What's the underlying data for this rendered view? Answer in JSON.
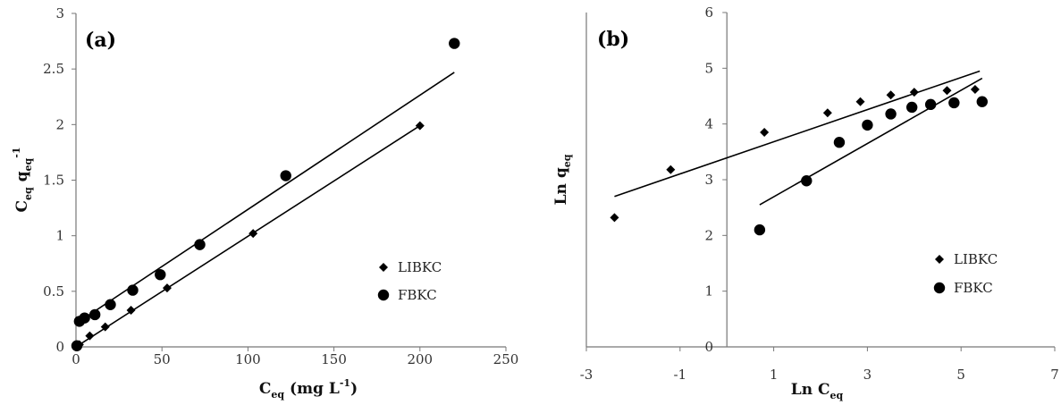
{
  "chart_data": [
    {
      "type": "scatter",
      "panel_label": "(a)",
      "ylabel_parts": [
        "C",
        "eq",
        " q",
        "eq",
        "-1"
      ],
      "xlabel_parts": [
        "C",
        "eq",
        " (mg L",
        "-1",
        ")"
      ],
      "xlim": [
        0,
        250
      ],
      "ylim": [
        0,
        3
      ],
      "xticks": [
        0,
        50,
        100,
        150,
        200,
        250
      ],
      "yticks": [
        0,
        0.5,
        1,
        1.5,
        2,
        2.5,
        3
      ],
      "xtick_labels": [
        "0",
        "50",
        "100",
        "150",
        "200",
        "250"
      ],
      "ytick_labels": [
        "0",
        "0.5",
        "1",
        "1.5",
        "2",
        "2.5",
        "3"
      ],
      "legend_position": "right",
      "series": [
        {
          "name": "LIBKC",
          "marker": "diamond",
          "x": [
            2,
            8,
            17,
            32,
            53,
            103,
            200
          ],
          "y": [
            0.02,
            0.1,
            0.18,
            0.33,
            0.53,
            1.02,
            1.99
          ],
          "fit": [
            [
              3,
              0.03
            ],
            [
              200,
              1.99
            ]
          ]
        },
        {
          "name": "FBKC",
          "marker": "circle",
          "x": [
            0.5,
            2,
            5,
            11,
            20,
            33,
            49,
            72,
            122,
            220
          ],
          "y": [
            0.01,
            0.23,
            0.26,
            0.29,
            0.38,
            0.51,
            0.65,
            0.92,
            1.54,
            2.73
          ],
          "fit": [
            [
              2,
              0.23
            ],
            [
              220,
              2.47
            ]
          ]
        }
      ]
    },
    {
      "type": "scatter",
      "panel_label": "(b)",
      "ylabel_parts": [
        "Ln q",
        "eq"
      ],
      "xlabel_parts": [
        "Ln C",
        "eq"
      ],
      "xlim": [
        -3,
        7
      ],
      "ylim": [
        0,
        6
      ],
      "xticks": [
        -3,
        -1,
        1,
        3,
        5,
        7
      ],
      "yticks": [
        0,
        1,
        2,
        3,
        4,
        5,
        6
      ],
      "xtick_labels": [
        "-3",
        "-1",
        "1",
        "3",
        "5",
        "7"
      ],
      "ytick_labels": [
        "0",
        "1",
        "2",
        "3",
        "4",
        "5",
        "6"
      ],
      "legend_position": "bottom-right",
      "series": [
        {
          "name": "LIBKC",
          "marker": "diamond",
          "x": [
            -2.4,
            -1.2,
            0.8,
            2.15,
            2.85,
            3.5,
            4.0,
            4.7,
            5.3
          ],
          "y": [
            2.32,
            3.18,
            3.85,
            4.2,
            4.4,
            4.52,
            4.57,
            4.6,
            4.62
          ],
          "fit": [
            [
              -2.4,
              2.7
            ],
            [
              5.4,
              4.95
            ]
          ]
        },
        {
          "name": "FBKC",
          "marker": "circle",
          "x": [
            0.7,
            1.7,
            2.4,
            3.0,
            3.5,
            3.95,
            4.35,
            4.85,
            5.45
          ],
          "y": [
            2.1,
            2.98,
            3.67,
            3.98,
            4.18,
            4.3,
            4.35,
            4.38,
            4.4
          ],
          "fit": [
            [
              0.7,
              2.55
            ],
            [
              5.45,
              4.82
            ]
          ]
        }
      ]
    }
  ]
}
